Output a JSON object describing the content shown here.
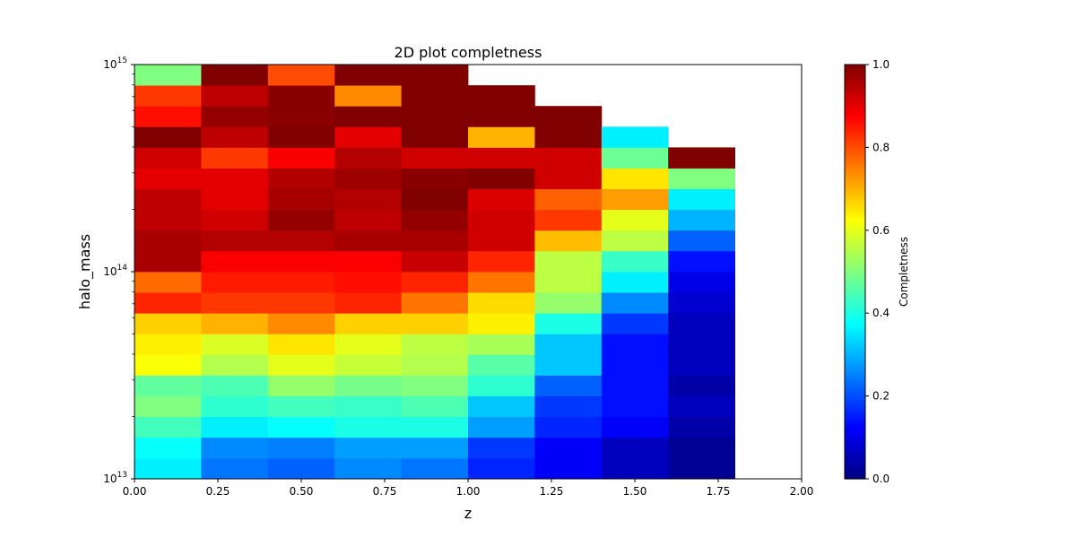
{
  "chart_data": {
    "type": "heatmap",
    "title": "2D plot completness",
    "xlabel": "z",
    "ylabel": "halo_mass",
    "colorbar_label": "Completness",
    "colormap": "jet",
    "xlim": [
      0,
      2.0
    ],
    "ylim": [
      10000000000000.0,
      1000000000000000.0
    ],
    "yscale": "log",
    "x_ticks": [
      "0.00",
      "0.25",
      "0.50",
      "0.75",
      "1.00",
      "1.25",
      "1.50",
      "1.75",
      "2.00"
    ],
    "y_tick_base": "10",
    "y_tick_exponents": [
      "13",
      "14",
      "15"
    ],
    "colorbar_ticks": [
      "0.0",
      "0.2",
      "0.4",
      "0.6",
      "0.8",
      "1.0"
    ],
    "colorbar_range": [
      0,
      1
    ],
    "x_bin_edges": [
      0,
      0.2,
      0.4,
      0.6,
      0.8,
      1.0,
      1.2,
      1.4,
      1.6,
      1.8
    ],
    "logmass_bin_edges": [
      13.0,
      13.1,
      13.2,
      13.3,
      13.4,
      13.5,
      13.6,
      13.7,
      13.8,
      13.9,
      14.0,
      14.1,
      14.2,
      14.3,
      14.4,
      14.5,
      14.6,
      14.7,
      14.8,
      14.9,
      15.0
    ],
    "columns": [
      {
        "z_range": [
          0.0,
          0.2
        ],
        "completeness": [
          0.36,
          0.38,
          0.44,
          0.5,
          0.47,
          0.62,
          0.64,
          0.67,
          0.84,
          0.77,
          0.96,
          0.96,
          0.94,
          0.94,
          0.9,
          0.92,
          1.0,
          0.86,
          0.82,
          0.5
        ]
      },
      {
        "z_range": [
          0.2,
          0.4
        ],
        "completeness": [
          0.24,
          0.26,
          0.36,
          0.42,
          0.45,
          0.55,
          0.59,
          0.7,
          0.82,
          0.85,
          0.88,
          0.95,
          0.92,
          0.9,
          0.9,
          0.82,
          0.94,
          0.98,
          0.94,
          1.0
        ]
      },
      {
        "z_range": [
          0.4,
          0.6
        ],
        "completeness": [
          0.22,
          0.25,
          0.38,
          0.44,
          0.52,
          0.6,
          0.65,
          0.74,
          0.82,
          0.85,
          0.88,
          0.95,
          0.98,
          0.96,
          0.95,
          0.88,
          1.0,
          0.99,
          0.99,
          0.8
        ]
      },
      {
        "z_range": [
          0.6,
          0.8
        ],
        "completeness": [
          0.26,
          0.28,
          0.4,
          0.43,
          0.49,
          0.57,
          0.6,
          0.67,
          0.84,
          0.86,
          0.88,
          0.96,
          0.94,
          0.95,
          0.97,
          0.95,
          0.9,
          1.0,
          0.74,
          1.0
        ]
      },
      {
        "z_range": [
          0.8,
          1.0
        ],
        "completeness": [
          0.24,
          0.28,
          0.4,
          0.45,
          0.5,
          0.55,
          0.56,
          0.67,
          0.76,
          0.84,
          0.93,
          0.96,
          0.98,
          1.0,
          0.99,
          0.92,
          1.0,
          1.0,
          1.0,
          1.0
        ]
      },
      {
        "z_range": [
          1.0,
          1.2
        ],
        "completeness": [
          0.16,
          0.18,
          0.28,
          0.32,
          0.42,
          0.46,
          0.54,
          0.64,
          0.66,
          0.76,
          0.84,
          0.92,
          0.92,
          0.91,
          1.0,
          0.92,
          0.7,
          1.0,
          1.0,
          null
        ]
      },
      {
        "z_range": [
          1.2,
          1.4
        ],
        "completeness": [
          0.12,
          0.12,
          0.16,
          0.18,
          0.22,
          0.32,
          0.32,
          0.4,
          0.52,
          0.56,
          0.56,
          0.69,
          0.82,
          0.78,
          0.92,
          0.92,
          1.0,
          1.0,
          null,
          null
        ]
      },
      {
        "z_range": [
          1.4,
          1.6
        ],
        "completeness": [
          0.06,
          0.06,
          0.12,
          0.14,
          0.14,
          0.14,
          0.14,
          0.18,
          0.26,
          0.36,
          0.43,
          0.56,
          0.6,
          0.72,
          0.65,
          0.48,
          0.36,
          null,
          null,
          null
        ]
      },
      {
        "z_range": [
          1.6,
          1.8
        ],
        "completeness": [
          0.02,
          0.02,
          0.04,
          0.06,
          0.04,
          0.06,
          0.06,
          0.06,
          0.08,
          0.1,
          0.14,
          0.22,
          0.3,
          0.36,
          0.5,
          1.0,
          null,
          null,
          null,
          null
        ]
      }
    ]
  }
}
